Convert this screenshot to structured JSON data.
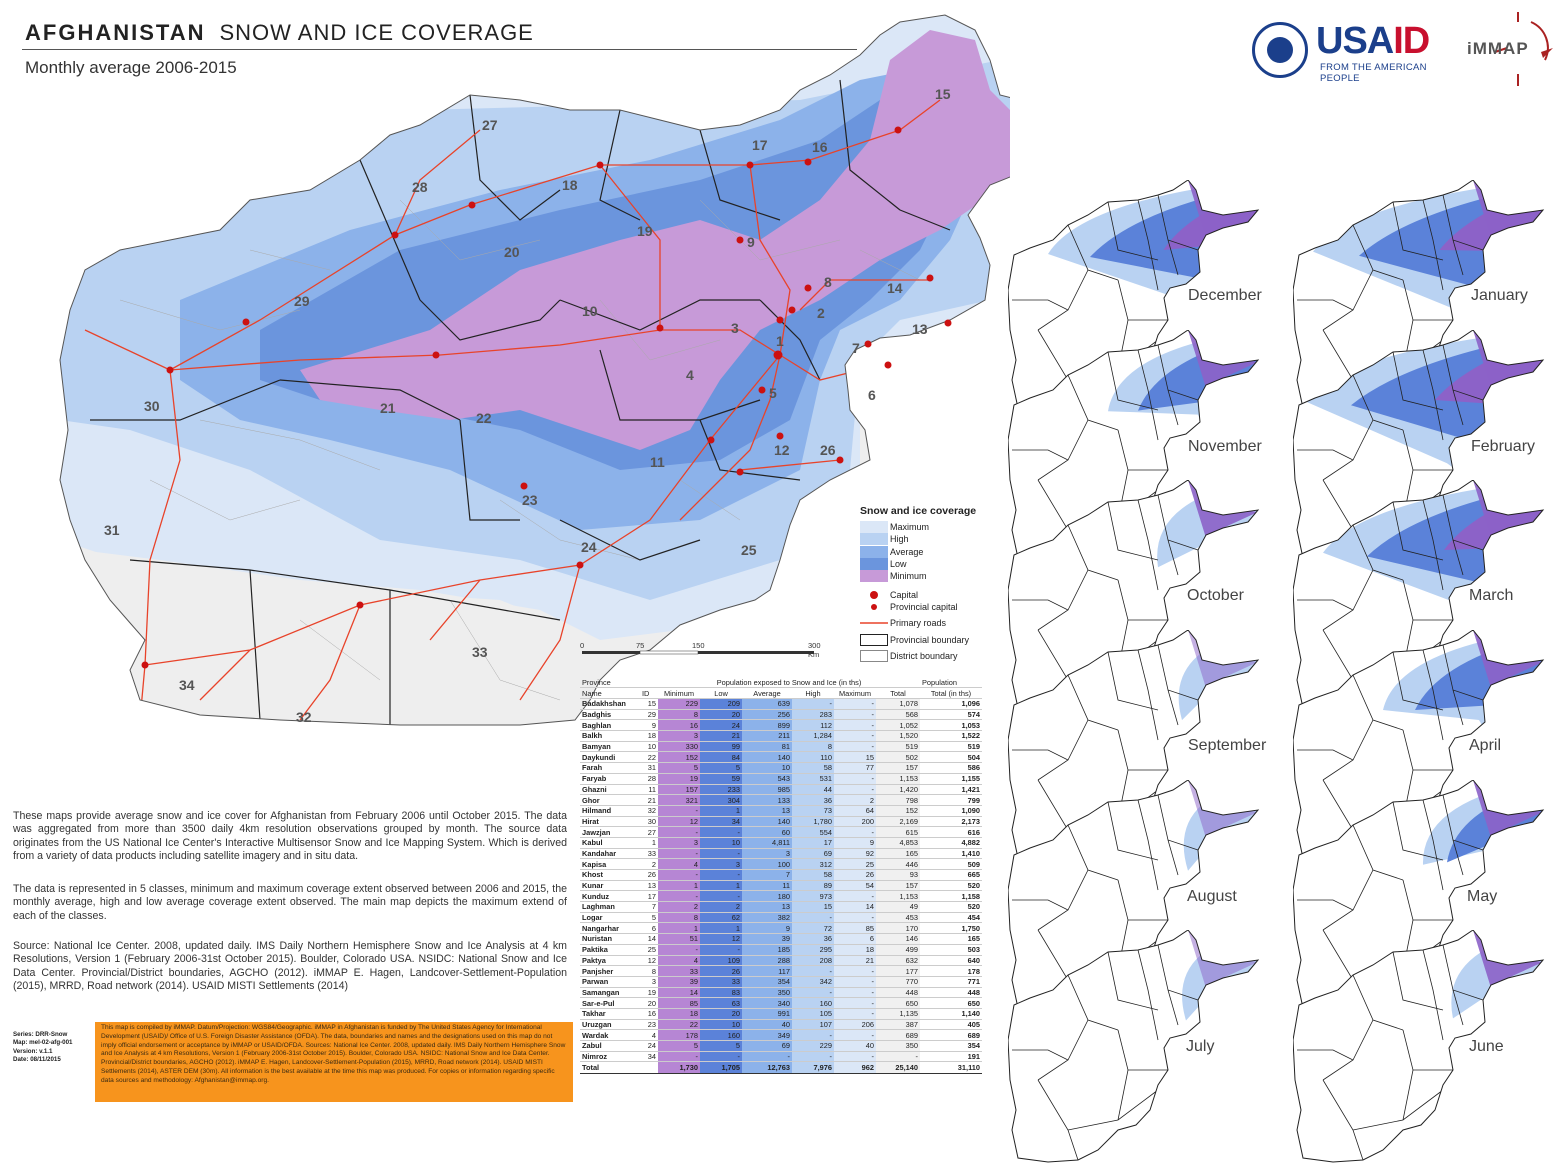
{
  "header": {
    "country": "AFGHANISTAN",
    "title": "SNOW AND ICE COVERAGE",
    "subtitle": "Monthly average 2006-2015"
  },
  "logos": {
    "usaid_word_blue": "USA",
    "usaid_word_red": "ID",
    "usaid_tagline": "FROM THE AMERICAN PEOPLE",
    "immap": "iMMAP"
  },
  "colors": {
    "maximum": "#dbe7f7",
    "high": "#b9d2f2",
    "average": "#8cb2ea",
    "low": "#5b82d9",
    "minimum": "#c79ad8",
    "road": "#e8432a",
    "capital": "#cc1111",
    "noSnow": "#f0f0f0"
  },
  "province_ids": [
    "15",
    "27",
    "17",
    "16",
    "28",
    "18",
    "19",
    "9",
    "20",
    "29",
    "10",
    "8",
    "14",
    "3",
    "2",
    "13",
    "1",
    "7",
    "30",
    "4",
    "5",
    "6",
    "21",
    "22",
    "11",
    "12",
    "26",
    "31",
    "23",
    "24",
    "25",
    "33",
    "34",
    "32"
  ],
  "legend": {
    "title": "Snow and ice coverage",
    "classes": [
      "Maximum",
      "High",
      "Average",
      "Low",
      "Minimum"
    ],
    "symbols": [
      "Capital",
      "Provincial capital",
      "Primary roads",
      "Provincial boundary",
      "District boundary"
    ]
  },
  "scale": {
    "ticks": [
      "0",
      "75",
      "150",
      "300 Km"
    ]
  },
  "months": [
    "December",
    "January",
    "November",
    "February",
    "October",
    "March",
    "September",
    "April",
    "August",
    "May",
    "July",
    "June"
  ],
  "text": {
    "p1": "These maps provide average snow and ice cover for Afghanistan from February 2006 until October 2015.  The data was aggregated from more than 3500 daily 4km resolution observations grouped by month. The source data originates from the US National Ice Center's Interactive Multisensor Snow and Ice Mapping System. Which is derived from a variety of data products including satellite imagery and in situ data.",
    "p2": "The data is represented in 5 classes, minimum and maximum coverage extent observed between 2006 and 2015, the monthly average, high and low average coverage extent observed. The main map depicts the maximum extend of each of the classes.",
    "p3": "Source: National Ice Center. 2008, updated daily. IMS Daily Northern Hemisphere Snow and Ice Analysis at 4 km Resolutions, Version 1 (February 2006-31st October 2015). Boulder, Colorado USA. NSIDC: National Snow and Ice Data Center. Provincial/District boundaries, AGCHO (2012). iMMAP E. Hagen, Landcover-Settlement-Population (2015), MRRD, Road network (2014). USAID MISTI Settlements (2014)",
    "series": [
      "Series: DRR-Snow",
      "Map: mel-02-afg-001",
      "Version: v.1.1",
      "Date: 08/11/2015"
    ],
    "disclaimer": "This map is compiled by iMMAP. Datum/Projection: WGS84/Geographic. iMMAP in Afghanistan is funded by The United States Agency for International Development (USAID)/ Office of U.S. Foreign Disaster Assistance (OFDA). The data, boundaries and names and the designations used on this map do not imply official endorsement or acceptance by iMMAP or USAID/OFDA. Sources: National Ice Center. 2008, updated daily. IMS Daily Northern Hemisphere Snow and Ice Analysis at 4 km Resolutions, Version 1 (February 2006-31st October 2015). Boulder, Colorado USA. NSIDC: National Snow and Ice Data Center. Provincial/District boundaries, AGCHO (2012). iMMAP E. Hagen, Landcover-Settlement-Population (2015), MRRD, Road network (2014). USAID MISTI Settlements (2014), ASTER DEM (30m). All information is the best available at the time this map was produced. For copies or information regarding specific data sources and methodology: Afghanistan@immap.org."
  },
  "table": {
    "header_top": [
      "Province",
      "",
      "Population exposed to Snow and Ice (in ths)",
      "Population"
    ],
    "header": [
      "Name",
      "ID",
      "Minimum",
      "Low",
      "Average",
      "High",
      "Maximum",
      "Total",
      "Total  (in ths)"
    ],
    "rows": [
      [
        "Badakhshan",
        "15",
        "229",
        "209",
        "639",
        "-",
        "-",
        "1,078",
        "1,096"
      ],
      [
        "Badghis",
        "29",
        "8",
        "20",
        "256",
        "283",
        "-",
        "568",
        "574"
      ],
      [
        "Baghlan",
        "9",
        "16",
        "24",
        "899",
        "112",
        "-",
        "1,052",
        "1,053"
      ],
      [
        "Balkh",
        "18",
        "3",
        "21",
        "211",
        "1,284",
        "-",
        "1,520",
        "1,522"
      ],
      [
        "Bamyan",
        "10",
        "330",
        "99",
        "81",
        "8",
        "-",
        "519",
        "519"
      ],
      [
        "Daykundi",
        "22",
        "152",
        "84",
        "140",
        "110",
        "15",
        "502",
        "504"
      ],
      [
        "Farah",
        "31",
        "5",
        "5",
        "10",
        "58",
        "77",
        "157",
        "586"
      ],
      [
        "Faryab",
        "28",
        "19",
        "59",
        "543",
        "531",
        "-",
        "1,153",
        "1,155"
      ],
      [
        "Ghazni",
        "11",
        "157",
        "233",
        "985",
        "44",
        "-",
        "1,420",
        "1,421"
      ],
      [
        "Ghor",
        "21",
        "321",
        "304",
        "133",
        "36",
        "2",
        "798",
        "799"
      ],
      [
        "Hilmand",
        "32",
        "-",
        "1",
        "13",
        "73",
        "64",
        "152",
        "1,090"
      ],
      [
        "Hirat",
        "30",
        "12",
        "34",
        "140",
        "1,780",
        "200",
        "2,169",
        "2,173"
      ],
      [
        "Jawzjan",
        "27",
        "-",
        "-",
        "60",
        "554",
        "-",
        "615",
        "616"
      ],
      [
        "Kabul",
        "1",
        "3",
        "10",
        "4,811",
        "17",
        "9",
        "4,853",
        "4,882"
      ],
      [
        "Kandahar",
        "33",
        "-",
        "-",
        "3",
        "69",
        "92",
        "165",
        "1,410"
      ],
      [
        "Kapisa",
        "2",
        "4",
        "3",
        "100",
        "312",
        "25",
        "446",
        "509"
      ],
      [
        "Khost",
        "26",
        "-",
        "-",
        "7",
        "58",
        "26",
        "93",
        "665"
      ],
      [
        "Kunar",
        "13",
        "1",
        "1",
        "11",
        "89",
        "54",
        "157",
        "520"
      ],
      [
        "Kunduz",
        "17",
        "-",
        "-",
        "180",
        "973",
        "-",
        "1,153",
        "1,158"
      ],
      [
        "Laghman",
        "7",
        "2",
        "2",
        "13",
        "15",
        "14",
        "49",
        "520"
      ],
      [
        "Logar",
        "5",
        "8",
        "62",
        "382",
        "-",
        "-",
        "453",
        "454"
      ],
      [
        "Nangarhar",
        "6",
        "1",
        "1",
        "9",
        "72",
        "85",
        "170",
        "1,750"
      ],
      [
        "Nuristan",
        "14",
        "51",
        "12",
        "39",
        "36",
        "6",
        "146",
        "165"
      ],
      [
        "Paktika",
        "25",
        "-",
        "-",
        "185",
        "295",
        "18",
        "499",
        "503"
      ],
      [
        "Paktya",
        "12",
        "4",
        "109",
        "288",
        "208",
        "21",
        "632",
        "640"
      ],
      [
        "Panjsher",
        "8",
        "33",
        "26",
        "117",
        "-",
        "-",
        "177",
        "178"
      ],
      [
        "Parwan",
        "3",
        "39",
        "33",
        "354",
        "342",
        "-",
        "770",
        "771"
      ],
      [
        "Samangan",
        "19",
        "14",
        "83",
        "350",
        "-",
        "-",
        "448",
        "448"
      ],
      [
        "Sar-e-Pul",
        "20",
        "85",
        "63",
        "340",
        "160",
        "-",
        "650",
        "650"
      ],
      [
        "Takhar",
        "16",
        "18",
        "20",
        "991",
        "105",
        "-",
        "1,135",
        "1,140"
      ],
      [
        "Uruzgan",
        "23",
        "22",
        "10",
        "40",
        "107",
        "206",
        "387",
        "405"
      ],
      [
        "Wardak",
        "4",
        "178",
        "160",
        "349",
        "-",
        "-",
        "689",
        "689"
      ],
      [
        "Zabul",
        "24",
        "5",
        "5",
        "69",
        "229",
        "40",
        "350",
        "354"
      ],
      [
        "Nimroz",
        "34",
        "-",
        "-",
        "-",
        "-",
        "-",
        "-",
        "191"
      ]
    ],
    "total": [
      "Total",
      "",
      "1,730",
      "1,705",
      "12,763",
      "7,976",
      "962",
      "25,140",
      "31,110"
    ]
  }
}
